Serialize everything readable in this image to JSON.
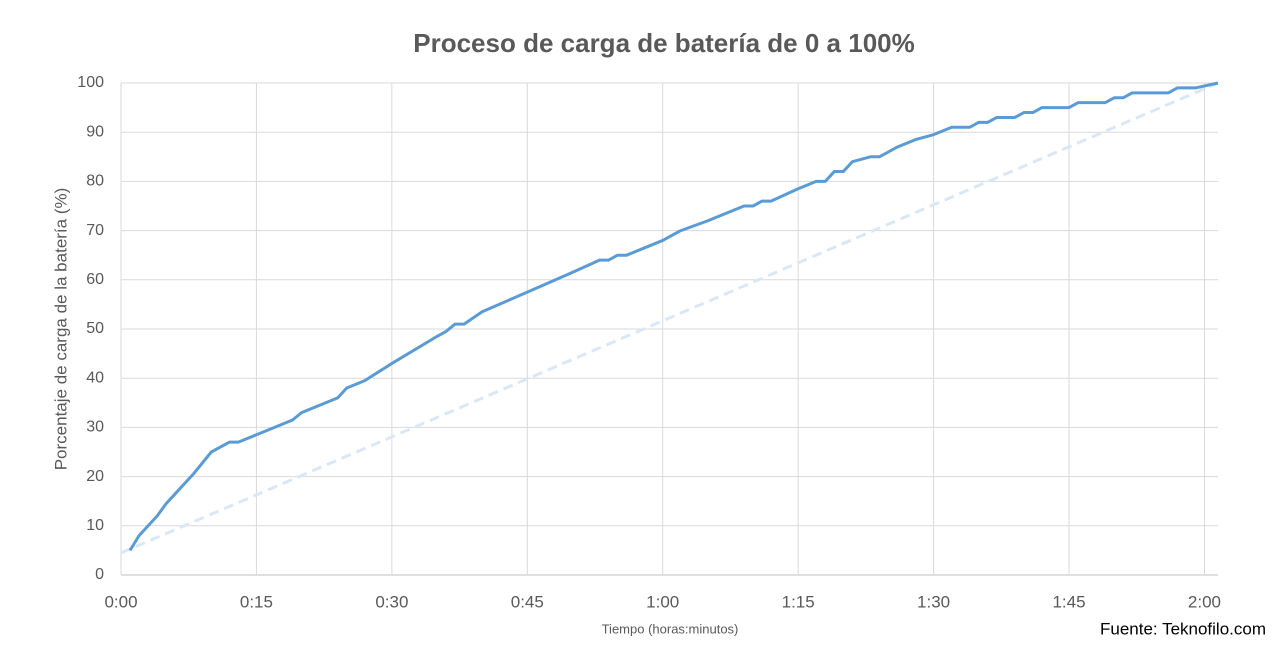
{
  "chart_data": {
    "type": "line",
    "title": "Proceso de carga de batería de 0 a 100%",
    "x_label": "Tiempo (horas:minutos)",
    "y_label": "Porcentaje de carga de la batería (%)",
    "source": "Fuente: Teknofilo.com",
    "xlim": [
      0,
      121.5
    ],
    "ylim": [
      0,
      100
    ],
    "xticks": [
      {
        "value": 0,
        "label": "0:00"
      },
      {
        "value": 15,
        "label": "0:15"
      },
      {
        "value": 30,
        "label": "0:30"
      },
      {
        "value": 45,
        "label": "0:45"
      },
      {
        "value": 60,
        "label": "1:00"
      },
      {
        "value": 75,
        "label": "1:15"
      },
      {
        "value": 90,
        "label": "1:30"
      },
      {
        "value": 105,
        "label": "1:45"
      },
      {
        "value": 120,
        "label": "2:00"
      }
    ],
    "yticks": [
      0,
      10,
      20,
      30,
      40,
      50,
      60,
      70,
      80,
      90,
      100
    ],
    "grid": true,
    "series": [
      {
        "color": "#5b9bd5",
        "dashed": false,
        "x": [
          1,
          2,
          4,
          5,
          6,
          8,
          10,
          12,
          13,
          15,
          17,
          19,
          20,
          22,
          24,
          25,
          27,
          30,
          35,
          36,
          37,
          38,
          40,
          45,
          50,
          53,
          54,
          55,
          56,
          58,
          60,
          62,
          65,
          67,
          69,
          70,
          71,
          72,
          75,
          77,
          78,
          79,
          80,
          81,
          83,
          84,
          86,
          88,
          90,
          92,
          94,
          95,
          96,
          97,
          99,
          100,
          101,
          102,
          105,
          106,
          109,
          110,
          111,
          112,
          116,
          117,
          119,
          121.5
        ],
        "values": [
          5,
          8,
          12,
          14.5,
          16.5,
          20.5,
          25,
          27,
          27,
          28.5,
          30,
          31.5,
          33,
          34.5,
          36,
          38,
          39.5,
          43,
          48.5,
          49.5,
          51,
          51,
          53.5,
          57.5,
          61.5,
          64,
          64,
          65,
          65,
          66.5,
          68,
          70,
          72,
          73.5,
          75,
          75,
          76,
          76,
          78.5,
          80,
          80,
          82,
          82,
          84,
          85,
          85,
          87,
          88.5,
          89.5,
          91,
          91,
          92,
          92,
          93,
          93,
          94,
          94,
          95,
          95,
          96,
          96,
          97,
          97,
          98,
          98,
          99,
          99,
          100
        ]
      },
      {
        "color": "#dae8f5",
        "dashed": true,
        "x": [
          0,
          121.5
        ],
        "values": [
          4.5,
          100
        ]
      }
    ]
  }
}
